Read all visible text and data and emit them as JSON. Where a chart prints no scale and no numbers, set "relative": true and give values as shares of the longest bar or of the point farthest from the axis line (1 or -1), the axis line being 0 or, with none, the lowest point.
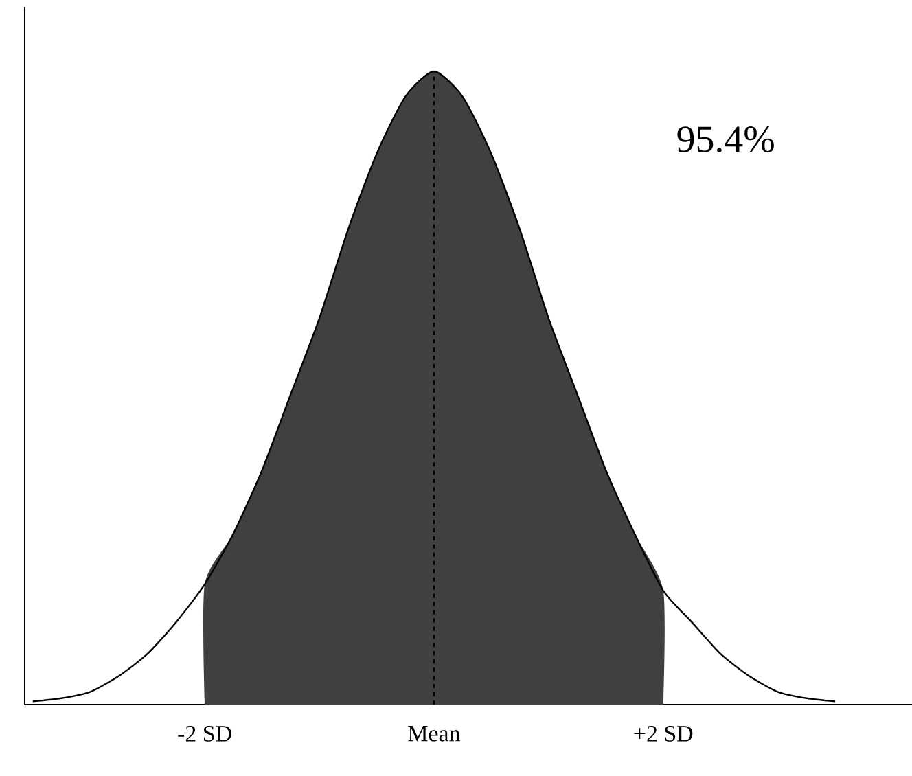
{
  "chart_data": {
    "type": "line",
    "relative": true,
    "xlim": [
      -3.57,
      4.17
    ],
    "xticks": [
      {
        "value": -2,
        "label": "-2 SD"
      },
      {
        "value": 0,
        "label": "Mean"
      },
      {
        "value": 2,
        "label": "+2 SD"
      }
    ],
    "series": [
      {
        "type": "area",
        "color": "#404040",
        "x": [
          -2,
          -1.75,
          -1.5,
          -1.25,
          -1,
          -0.75,
          -0.5,
          -0.25,
          0,
          0.25,
          0.5,
          0.75,
          1,
          1.25,
          1.5,
          1.75,
          2
        ],
        "values": [
          0.19,
          0.27,
          0.37,
          0.49,
          0.61,
          0.75,
          0.87,
          0.96,
          1,
          0.96,
          0.87,
          0.75,
          0.61,
          0.49,
          0.37,
          0.27,
          0.18
        ]
      },
      {
        "color": "#000000",
        "x": [
          -3.5,
          -3.25,
          -3,
          -2.75,
          -2.5,
          -2.25,
          -2,
          -1.75,
          -1.5,
          -1.25,
          -1,
          -0.75,
          -0.5,
          -0.25,
          0,
          0.25,
          0.5,
          0.75,
          1,
          1.25,
          1.5,
          1.75,
          2,
          2.25,
          2.5,
          2.75,
          3,
          3.25,
          3.5
        ],
        "values": [
          0.005,
          0.01,
          0.02,
          0.045,
          0.08,
          0.13,
          0.19,
          0.27,
          0.37,
          0.49,
          0.61,
          0.75,
          0.87,
          0.96,
          1,
          0.96,
          0.87,
          0.75,
          0.61,
          0.49,
          0.37,
          0.27,
          0.18,
          0.13,
          0.08,
          0.045,
          0.02,
          0.01,
          0.005
        ]
      }
    ],
    "ref_lines": [
      {
        "axis": "x",
        "value": 0,
        "color": "#000000",
        "line_style": "dashed"
      }
    ],
    "annotations": [
      "95.4%"
    ]
  }
}
